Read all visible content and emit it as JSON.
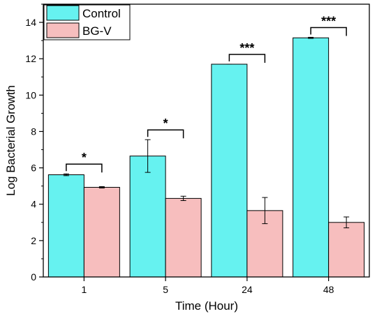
{
  "chart_data": {
    "type": "bar",
    "title": "",
    "xlabel": "Time (Hour)",
    "ylabel": "Log Bacterial Growth",
    "categories": [
      "1",
      "5",
      "24",
      "48"
    ],
    "ylim": [
      0,
      15
    ],
    "yticks": [
      0,
      2,
      4,
      6,
      8,
      10,
      12,
      14
    ],
    "grid": false,
    "legend_position": "top-left",
    "series": [
      {
        "name": "Control",
        "color": "#66f2f0",
        "values": [
          5.62,
          6.65,
          11.7,
          13.15
        ],
        "errors": [
          0.05,
          0.9,
          0.0,
          0.03
        ]
      },
      {
        "name": "BG-V",
        "color": "#f7bebe",
        "values": [
          4.93,
          4.32,
          3.65,
          3.0
        ],
        "errors": [
          0.04,
          0.12,
          0.72,
          0.3
        ]
      }
    ],
    "significance": [
      {
        "category": "1",
        "label": "*"
      },
      {
        "category": "5",
        "label": "*"
      },
      {
        "category": "24",
        "label": "***"
      },
      {
        "category": "48",
        "label": "***"
      }
    ]
  }
}
